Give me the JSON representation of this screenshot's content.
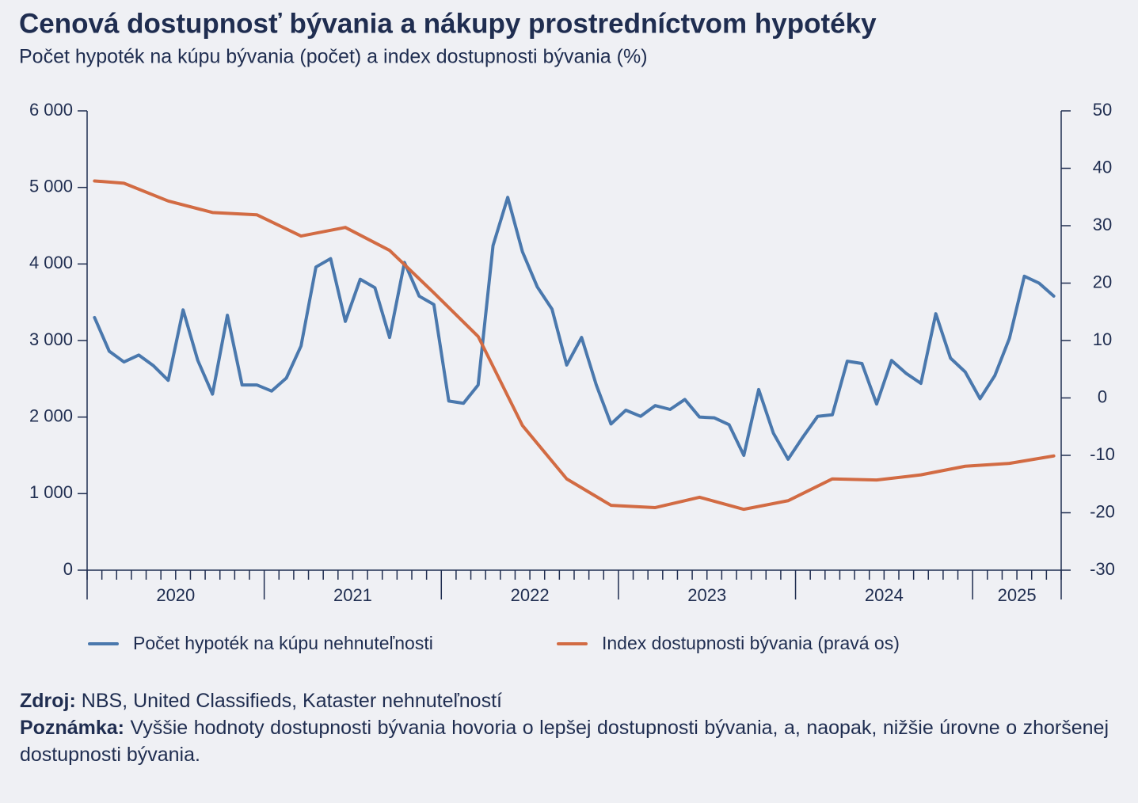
{
  "chart_data": {
    "type": "line",
    "title": "Cenová dostupnosť bývania a nákupy prostredníctvom hypotéky",
    "subtitle": "Počet hypoték na kúpu bývania (počet) a index dostupnosti bývania (%)",
    "x": [
      2020.042,
      2020.125,
      2020.208,
      2020.292,
      2020.375,
      2020.458,
      2020.542,
      2020.625,
      2020.708,
      2020.792,
      2020.875,
      2020.958,
      2021.042,
      2021.125,
      2021.208,
      2021.292,
      2021.375,
      2021.458,
      2021.542,
      2021.625,
      2021.708,
      2021.792,
      2021.875,
      2021.958,
      2022.042,
      2022.125,
      2022.208,
      2022.292,
      2022.375,
      2022.458,
      2022.542,
      2022.625,
      2022.708,
      2022.792,
      2022.875,
      2022.958,
      2023.042,
      2023.125,
      2023.208,
      2023.292,
      2023.375,
      2023.458,
      2023.542,
      2023.625,
      2023.708,
      2023.792,
      2023.875,
      2023.958,
      2024.042,
      2024.125,
      2024.208,
      2024.292,
      2024.375,
      2024.458,
      2024.542,
      2024.625,
      2024.708,
      2024.792,
      2024.875,
      2024.958,
      2025.042,
      2025.125,
      2025.208,
      2025.292,
      2025.375,
      2025.458
    ],
    "series": [
      {
        "name": "Počet hypoték na kúpu nehnuteľnosti",
        "color": "#4a78ad",
        "values": [
          3300,
          2860,
          2720,
          2810,
          2670,
          2480,
          3400,
          2740,
          2300,
          3330,
          2420,
          2420,
          2340,
          2510,
          2930,
          3960,
          4070,
          3250,
          3800,
          3690,
          3040,
          4020,
          3580,
          3470,
          2210,
          2180,
          2420,
          4240,
          4870,
          4160,
          3700,
          3410,
          2680,
          3040,
          2420,
          1910,
          2090,
          2010,
          2150,
          2100,
          2230,
          2000,
          1990,
          1900,
          1500,
          2360,
          1790,
          1450,
          1740,
          2010,
          2030,
          2730,
          2700,
          2170,
          2740,
          2570,
          2440,
          3350,
          2770,
          2590,
          2240,
          2540,
          3030,
          3840,
          3750,
          3580
        ]
      },
      {
        "name": "Index dostupnosti bývania (pravá os)",
        "color": "#d26b43",
        "axis": "y2",
        "x": [
          2020.042,
          2020.208,
          2020.458,
          2020.708,
          2020.958,
          2021.208,
          2021.458,
          2021.708,
          2021.958,
          2022.208,
          2022.458,
          2022.708,
          2022.958,
          2023.208,
          2023.458,
          2023.708,
          2023.958,
          2024.208,
          2024.458,
          2024.708,
          2024.958,
          2025.208,
          2025.458
        ],
        "values": [
          37.8,
          37.4,
          34.3,
          32.3,
          31.9,
          28.2,
          29.7,
          25.7,
          18.3,
          10.7,
          -4.8,
          -14.1,
          -18.7,
          -19.1,
          -17.3,
          -19.4,
          -17.9,
          -14.1,
          -14.3,
          -13.4,
          -11.9,
          -11.4,
          -10.1
        ]
      }
    ],
    "xlim": [
      2020,
      2025.5
    ],
    "xticks": [
      {
        "value": 2020.5,
        "label": "2020"
      },
      {
        "value": 2021.5,
        "label": "2021"
      },
      {
        "value": 2022.5,
        "label": "2022"
      },
      {
        "value": 2023.5,
        "label": "2023"
      },
      {
        "value": 2024.5,
        "label": "2024"
      },
      {
        "value": 2025.25,
        "label": "2025"
      }
    ],
    "ylim": [
      0,
      6000
    ],
    "yticks": [
      0,
      {
        "value": 1000,
        "label": "1 000"
      },
      {
        "value": 2000,
        "label": "2 000"
      },
      {
        "value": 3000,
        "label": "3 000"
      },
      {
        "value": 4000,
        "label": "4 000"
      },
      {
        "value": 5000,
        "label": "5 000"
      },
      {
        "value": 6000,
        "label": "6 000"
      }
    ],
    "y2lim": [
      -30,
      50
    ],
    "y2ticks": [
      -30,
      -20,
      -10,
      0,
      10,
      20,
      30,
      40,
      50
    ],
    "source": {
      "label": "Zdroj:",
      "text": "NBS, United Classifieds, Kataster nehnuteľností"
    },
    "note": {
      "label": "Poznámka:",
      "text": "Vyššie hodnoty dostupnosti bývania hovoria o lepšej dostupnosti bývania, a, naopak, nižšie úrovne o zhoršenej dostupnosti bývania."
    }
  }
}
